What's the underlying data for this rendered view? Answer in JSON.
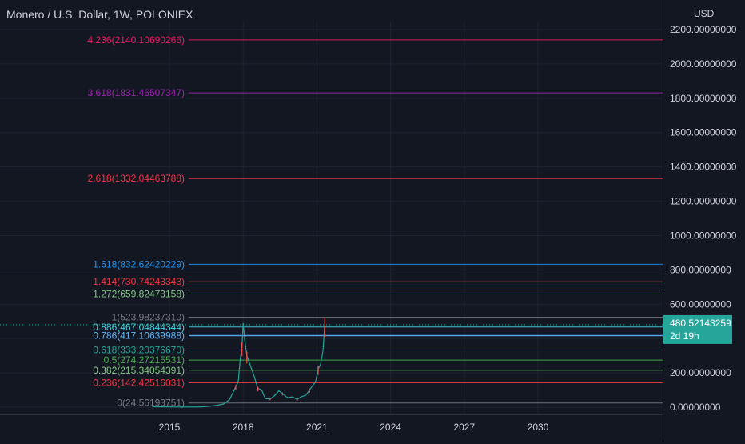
{
  "header": {
    "title": "Monero / U.S. Dollar, 1W, POLONIEX",
    "currency": "USD"
  },
  "price_tag": {
    "price": "480.52143259",
    "countdown": "2d 19h",
    "color": "#26a69a"
  },
  "chart_data": {
    "type": "line",
    "title": "Monero / U.S. Dollar, 1W, POLONIEX",
    "ylabel": "USD",
    "ylim": [
      0,
      2200
    ],
    "xlim": [
      2012.35,
      2032.6
    ],
    "y_ticks": [
      {
        "value": 0,
        "label": "0.00000000"
      },
      {
        "value": 200,
        "label": "200.00000000"
      },
      {
        "value": 400,
        "label": ""
      },
      {
        "value": 600,
        "label": "600.00000000"
      },
      {
        "value": 800,
        "label": "800.00000000"
      },
      {
        "value": 1000,
        "label": "1000.00000000"
      },
      {
        "value": 1200,
        "label": "1200.00000000"
      },
      {
        "value": 1400,
        "label": "1400.00000000"
      },
      {
        "value": 1600,
        "label": "1600.00000000"
      },
      {
        "value": 1800,
        "label": "1800.00000000"
      },
      {
        "value": 2000,
        "label": "2000.00000000"
      },
      {
        "value": 2200,
        "label": "2200.00000000"
      }
    ],
    "x_ticks": [
      {
        "value": 2015,
        "label": "2015"
      },
      {
        "value": 2018,
        "label": "2018"
      },
      {
        "value": 2021,
        "label": "2021"
      },
      {
        "value": 2024,
        "label": "2024"
      },
      {
        "value": 2027,
        "label": "2027"
      },
      {
        "value": 2030,
        "label": "2030"
      }
    ],
    "fib_levels": [
      {
        "label": "4.236(2140.10690266)",
        "value": 2140.10690266,
        "color": "#e91e63"
      },
      {
        "label": "3.618(1831.46507347)",
        "value": 1831.46507347,
        "color": "#9c27b0"
      },
      {
        "label": "2.618(1332.04463788)",
        "value": 1332.04463788,
        "color": "#f23645"
      },
      {
        "label": "1.618(832.62420229)",
        "value": 832.62420229,
        "color": "#2196f3"
      },
      {
        "label": "1.414(730.74243343)",
        "value": 730.74243343,
        "color": "#f23645"
      },
      {
        "label": "1.272(659.82473158)",
        "value": 659.82473158,
        "color": "#81c784"
      },
      {
        "label": "1(523.98237310)",
        "value": 523.9823731,
        "color": "#787b86"
      },
      {
        "label": "0.886(467.04844344)",
        "value": 467.04844344,
        "color": "#4dd0e1"
      },
      {
        "label": "0.786(417.10639988)",
        "value": 417.10639988,
        "color": "#64b5f6"
      },
      {
        "label": "0.618(333.20376670)",
        "value": 333.2037667,
        "color": "#26a69a"
      },
      {
        "label": "0.5(274.27215531)",
        "value": 274.27215531,
        "color": "#4caf50"
      },
      {
        "label": "0.382(215.34054391)",
        "value": 215.34054391,
        "color": "#81c784"
      },
      {
        "label": "0.236(142.42516031)",
        "value": 142.42516031,
        "color": "#f23645"
      },
      {
        "label": "0(24.56193751)",
        "value": 24.56193751,
        "color": "#787b86"
      }
    ],
    "series": [
      {
        "values": [
          [
            2014.3,
            3
          ],
          [
            2014.8,
            2
          ],
          [
            2015.3,
            1
          ],
          [
            2015.8,
            1
          ],
          [
            2016.3,
            2
          ],
          [
            2016.6,
            5
          ],
          [
            2016.9,
            10
          ],
          [
            2017.2,
            18
          ],
          [
            2017.45,
            45
          ],
          [
            2017.6,
            90
          ],
          [
            2017.7,
            120
          ],
          [
            2017.8,
            150
          ],
          [
            2017.88,
            280
          ],
          [
            2017.95,
            350
          ],
          [
            2018.0,
            490
          ],
          [
            2018.05,
            410
          ],
          [
            2018.15,
            300
          ],
          [
            2018.3,
            240
          ],
          [
            2018.45,
            180
          ],
          [
            2018.6,
            110
          ],
          [
            2018.75,
            100
          ],
          [
            2018.9,
            50
          ],
          [
            2019.1,
            48
          ],
          [
            2019.3,
            70
          ],
          [
            2019.45,
            95
          ],
          [
            2019.6,
            80
          ],
          [
            2019.8,
            55
          ],
          [
            2020.0,
            60
          ],
          [
            2020.2,
            45
          ],
          [
            2020.35,
            60
          ],
          [
            2020.55,
            70
          ],
          [
            2020.7,
            100
          ],
          [
            2020.85,
            130
          ],
          [
            2020.95,
            150
          ],
          [
            2021.05,
            220
          ],
          [
            2021.15,
            250
          ],
          [
            2021.25,
            330
          ],
          [
            2021.32,
            480.52
          ]
        ]
      }
    ]
  }
}
